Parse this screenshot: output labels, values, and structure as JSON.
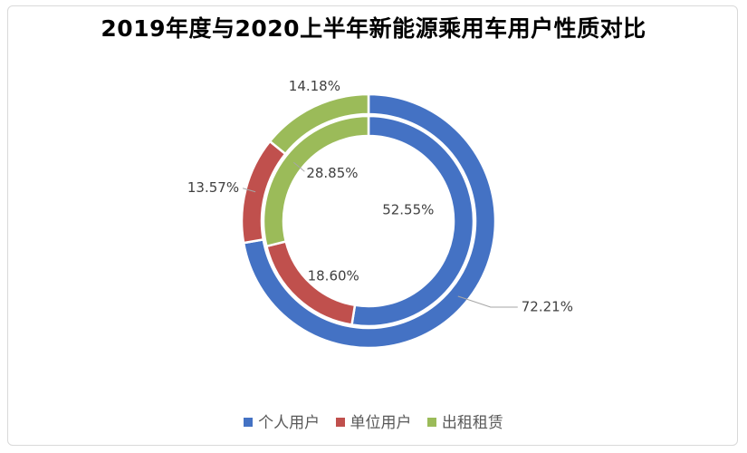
{
  "chart_data": {
    "type": "doughnut",
    "title": "2019年度与2020上半年新能源乘用车用户性质对比",
    "categories": [
      "个人用户",
      "单位用户",
      "出租租赁"
    ],
    "colors": [
      "#4472c4",
      "#c0504d",
      "#9bbb59"
    ],
    "series": [
      {
        "values": [
          72.21,
          13.57,
          14.18
        ],
        "labels": [
          "72.21%",
          "13.57%",
          "14.18%"
        ]
      },
      {
        "values": [
          52.55,
          18.6,
          28.85
        ],
        "labels": [
          "52.55%",
          "18.60%",
          "28.85%"
        ]
      }
    ],
    "legend_position": "bottom"
  }
}
